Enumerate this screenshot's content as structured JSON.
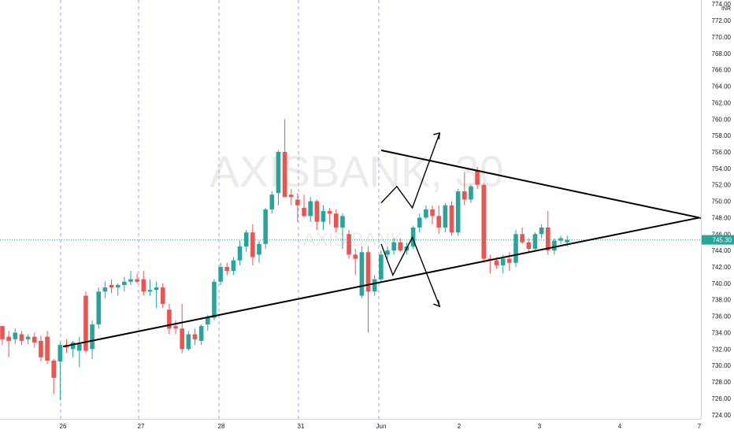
{
  "chart_data": {
    "type": "candlestick",
    "symbol_watermark": "AXISBANK, 30",
    "watermark_sub": "AXIS BANK",
    "currency": "INR",
    "price_tick_labels": [
      "774.00",
      "772.00",
      "770.00",
      "768.00",
      "766.00",
      "764.00",
      "762.00",
      "760.00",
      "758.00",
      "756.00",
      "754.00",
      "752.00",
      "750.00",
      "748.00",
      "746.00",
      "744.00",
      "742.00",
      "740.00",
      "738.00",
      "736.00",
      "734.00",
      "732.00",
      "730.00",
      "728.00",
      "726.00",
      "724.00"
    ],
    "date_tick_labels": [
      "26",
      "27",
      "28",
      "31",
      "Jun",
      "2",
      "3",
      "4",
      "7"
    ],
    "ylim": [
      723.5,
      774.5
    ],
    "current_price": "745.30",
    "colors": {
      "up": "#26a69a",
      "down": "#ef5350",
      "price_line": "#26a69a",
      "session_separator": "#2962ff",
      "trendline": "#000000"
    },
    "candles": [
      [
        734.8,
        734.8,
        732.5,
        733.2
      ],
      [
        733.5,
        734.2,
        731.0,
        733.0
      ],
      [
        733.2,
        734.5,
        732.6,
        734.0
      ],
      [
        733.8,
        734.2,
        732.5,
        733.0
      ],
      [
        733.2,
        733.8,
        732.6,
        733.5
      ],
      [
        733.5,
        734.0,
        732.2,
        732.8
      ],
      [
        733.0,
        733.6,
        730.5,
        731.0
      ],
      [
        733.5,
        734.2,
        730.2,
        730.6
      ],
      [
        730.6,
        730.8,
        726.5,
        728.5
      ],
      [
        730.5,
        732.8,
        725.8,
        732.5
      ],
      [
        732.5,
        733.2,
        731.5,
        732.2
      ],
      [
        732.0,
        733.0,
        731.0,
        732.8
      ],
      [
        731.8,
        733.5,
        729.8,
        732.6
      ],
      [
        738.5,
        739.0,
        731.5,
        731.8
      ],
      [
        732.0,
        735.5,
        730.8,
        735.0
      ],
      [
        735.0,
        739.5,
        734.5,
        739.0
      ],
      [
        739.0,
        740.2,
        738.2,
        739.5
      ],
      [
        739.8,
        740.5,
        738.8,
        739.5
      ],
      [
        739.5,
        740.0,
        738.5,
        739.8
      ],
      [
        739.8,
        740.8,
        739.0,
        740.2
      ],
      [
        740.2,
        741.5,
        739.8,
        740.5
      ],
      [
        740.5,
        741.2,
        740.0,
        740.2
      ],
      [
        740.5,
        741.5,
        738.5,
        739.0
      ],
      [
        739.0,
        740.5,
        738.5,
        739.2
      ],
      [
        739.2,
        740.2,
        737.0,
        739.5
      ],
      [
        739.5,
        740.0,
        737.0,
        737.5
      ],
      [
        736.8,
        737.5,
        733.8,
        734.5
      ],
      [
        734.8,
        735.5,
        733.8,
        734.5
      ],
      [
        734.5,
        737.5,
        731.5,
        732.0
      ],
      [
        732.0,
        734.2,
        731.8,
        733.8
      ],
      [
        733.8,
        734.5,
        732.5,
        733.2
      ],
      [
        733.0,
        735.0,
        732.5,
        734.8
      ],
      [
        735.0,
        736.2,
        734.2,
        735.8
      ],
      [
        735.8,
        740.5,
        735.5,
        740.2
      ],
      [
        740.2,
        742.5,
        739.8,
        742.0
      ],
      [
        742.0,
        742.5,
        741.0,
        741.5
      ],
      [
        741.5,
        743.2,
        741.0,
        742.8
      ],
      [
        742.8,
        745.2,
        742.2,
        744.5
      ],
      [
        744.5,
        746.5,
        743.8,
        746.2
      ],
      [
        746.2,
        747.2,
        742.2,
        743.2
      ],
      [
        743.5,
        745.2,
        742.5,
        744.8
      ],
      [
        744.8,
        749.2,
        744.2,
        749.0
      ],
      [
        749.0,
        751.2,
        748.5,
        750.8
      ],
      [
        751.0,
        756.2,
        749.5,
        756.0
      ],
      [
        756.0,
        760.0,
        750.5,
        750.5
      ],
      [
        750.8,
        751.5,
        749.5,
        750.5
      ],
      [
        750.2,
        751.0,
        747.5,
        749.5
      ],
      [
        749.2,
        750.8,
        748.0,
        748.2
      ],
      [
        748.2,
        750.5,
        747.5,
        750.0
      ],
      [
        750.0,
        750.2,
        746.5,
        747.5
      ],
      [
        747.5,
        749.5,
        746.5,
        748.8
      ],
      [
        748.8,
        749.2,
        747.2,
        748.5
      ],
      [
        748.5,
        749.0,
        746.2,
        746.8
      ],
      [
        746.8,
        748.5,
        744.2,
        748.2
      ],
      [
        746.0,
        746.5,
        743.0,
        743.5
      ],
      [
        743.5,
        744.2,
        741.0,
        743.0
      ],
      [
        738.5,
        744.5,
        738.2,
        743.8
      ],
      [
        743.8,
        744.5,
        734.0,
        739.0
      ],
      [
        739.0,
        741.0,
        738.5,
        740.5
      ],
      [
        740.5,
        744.0,
        740.2,
        743.5
      ],
      [
        743.5,
        744.5,
        743.0,
        744.0
      ],
      [
        744.0,
        745.5,
        743.5,
        745.0
      ],
      [
        745.0,
        745.5,
        743.8,
        744.0
      ],
      [
        744.0,
        745.0,
        743.5,
        744.5
      ],
      [
        744.5,
        747.0,
        744.2,
        746.8
      ],
      [
        746.8,
        748.5,
        746.2,
        748.0
      ],
      [
        748.0,
        749.5,
        747.8,
        749.0
      ],
      [
        749.0,
        749.5,
        747.2,
        748.2
      ],
      [
        748.2,
        749.5,
        746.0,
        746.8
      ],
      [
        746.8,
        749.8,
        746.2,
        749.5
      ],
      [
        749.5,
        750.0,
        745.8,
        746.2
      ],
      [
        746.2,
        751.5,
        745.8,
        751.2
      ],
      [
        751.2,
        753.5,
        749.5,
        750.2
      ],
      [
        750.2,
        752.0,
        749.8,
        751.8
      ],
      [
        753.8,
        754.2,
        751.5,
        752.0
      ],
      [
        752.0,
        752.2,
        742.5,
        743.0
      ],
      [
        743.0,
        743.5,
        741.2,
        742.8
      ],
      [
        742.8,
        743.2,
        741.8,
        742.2
      ],
      [
        742.2,
        743.5,
        741.2,
        743.0
      ],
      [
        743.0,
        743.8,
        741.5,
        742.5
      ],
      [
        742.5,
        746.5,
        742.0,
        746.0
      ],
      [
        746.0,
        746.8,
        744.8,
        745.0
      ],
      [
        745.0,
        745.5,
        743.8,
        744.2
      ],
      [
        744.2,
        746.2,
        744.0,
        746.0
      ],
      [
        746.0,
        747.2,
        745.5,
        746.8
      ],
      [
        746.8,
        748.8,
        743.5,
        744.0
      ],
      [
        744.0,
        745.5,
        743.5,
        745.2
      ],
      [
        745.2,
        745.8,
        744.8,
        745.5
      ],
      [
        745.0,
        745.8,
        744.5,
        745.3
      ]
    ],
    "drawings": [
      {
        "label": "upper-trendline",
        "points": [
          [
            5,
            756.2
          ],
          [
            10,
            748.0
          ]
        ]
      },
      {
        "label": "lower-trendline",
        "points": [
          [
            1,
            732.3
          ],
          [
            10,
            748.0
          ]
        ]
      },
      {
        "label": "breakout-up-path",
        "points": [
          [
            5,
            749.8
          ],
          [
            5.2,
            751.8
          ],
          [
            5.4,
            749.2
          ],
          [
            5.75,
            758.3
          ]
        ]
      },
      {
        "label": "breakout-down-path",
        "points": [
          [
            5,
            744.8
          ],
          [
            5.15,
            741.0
          ],
          [
            5.4,
            745.6
          ],
          [
            5.75,
            737.2
          ]
        ]
      }
    ]
  }
}
